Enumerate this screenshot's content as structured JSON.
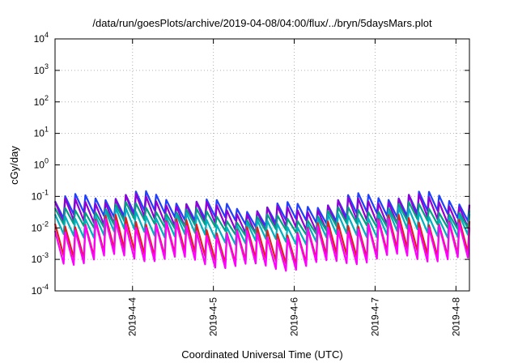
{
  "chart_data": {
    "type": "line",
    "title": "/data/run/goesPlots/archive/2019-04-08/04:00/flux/../bryn/5daysMars.plot",
    "xlabel": "Coordinated Universal Time (UTC)",
    "ylabel": "cGy/day",
    "xlim": [
      "2019-04-03 01:00",
      "2019-04-08 04:00"
    ],
    "ylim": [
      0.0001,
      10000
    ],
    "yscale": "log",
    "grid": true,
    "legend": "none",
    "x_ticks": [
      "2019-4-4",
      "2019-4-5",
      "2019-4-6",
      "2019-4-7",
      "2019-4-8"
    ],
    "y_ticks": [
      {
        "base": "10",
        "exp": "4"
      },
      {
        "base": "10",
        "exp": "3"
      },
      {
        "base": "10",
        "exp": "2"
      },
      {
        "base": "10",
        "exp": "1"
      },
      {
        "base": "10",
        "exp": "0"
      },
      {
        "base": "10",
        "exp": "-1"
      },
      {
        "base": "10",
        "exp": "-2"
      },
      {
        "base": "10",
        "exp": "-3"
      },
      {
        "base": "10",
        "exp": "-4"
      }
    ],
    "x_tick_values": [
      "2019-04-04",
      "2019-04-05",
      "2019-04-06",
      "2019-04-07",
      "2019-04-08"
    ],
    "pattern": {
      "period_hours": 3,
      "samples": [
        {
          "t_hours": 0,
          "y": 0.05
        },
        {
          "t_hours": 2.5,
          "y": 0.005
        },
        {
          "t_hours": 3,
          "y": 0.05
        }
      ]
    },
    "series": [
      {
        "color": "#1f3fff",
        "y_high": 0.07,
        "y_low": 0.02
      },
      {
        "color": "#9400d3",
        "y_high": 0.055,
        "y_low": 0.012
      },
      {
        "color": "#00a080",
        "y_high": 0.03,
        "y_low": 0.01
      },
      {
        "color": "#00b0c0",
        "y_high": 0.02,
        "y_low": 0.005
      },
      {
        "color": "#e02020",
        "y_high": 0.012,
        "y_low": 0.0012
      },
      {
        "color": "#ff00ff",
        "y_high": 0.009,
        "y_low": 0.0008
      }
    ]
  }
}
